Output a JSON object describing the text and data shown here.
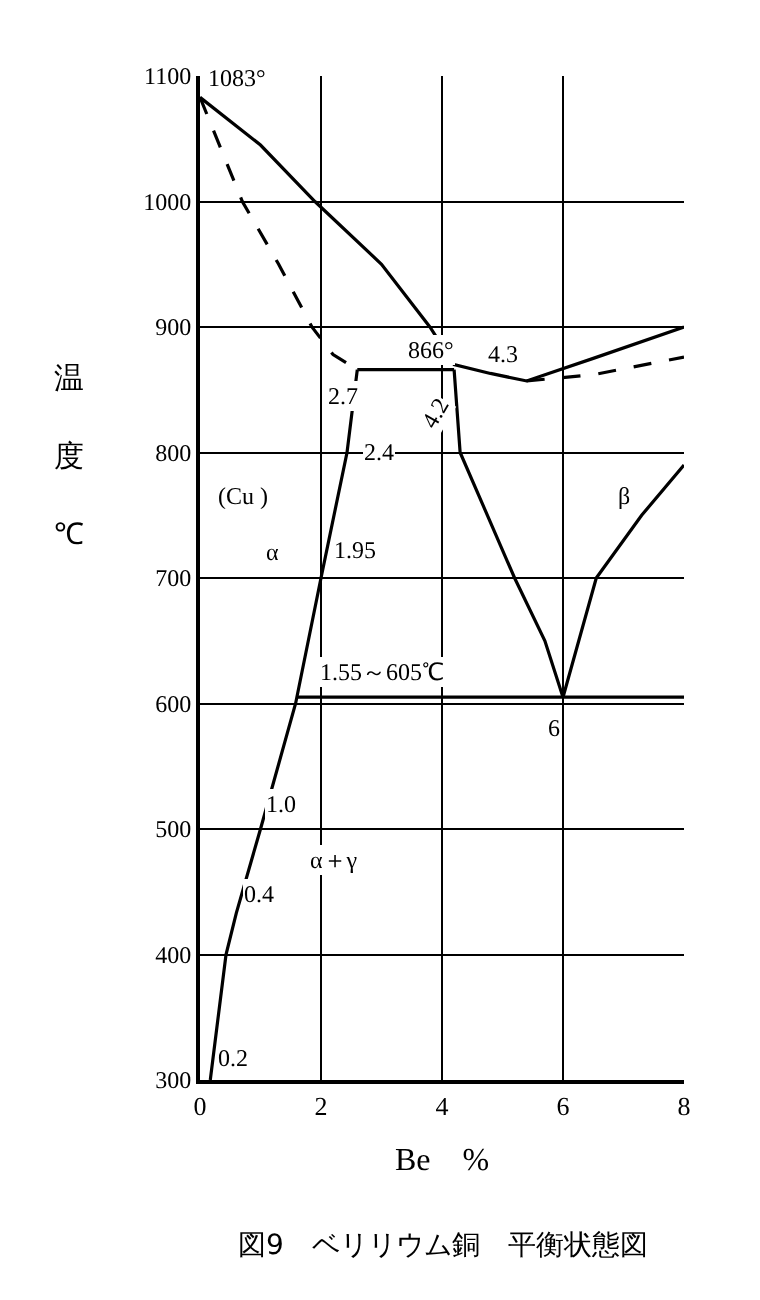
{
  "chart_data": {
    "type": "line",
    "title": "図9　ベリリウム銅　平衡状態図",
    "xlabel": "Be　%",
    "ylabel": "温度℃",
    "xlim": [
      0,
      8
    ],
    "xticks": [
      0,
      2,
      4,
      6,
      8
    ],
    "ylim": [
      300,
      1100
    ],
    "yticks": [
      300,
      400,
      500,
      600,
      700,
      800,
      900,
      1000,
      1100
    ],
    "grid": true,
    "marker": "none",
    "series": [
      {
        "color": "#000000",
        "line_style": "solid",
        "x": [
          0,
          1.0,
          1.9,
          3.0,
          3.8,
          4.2,
          4.8,
          5.4,
          6.5,
          8
        ],
        "values": [
          1083,
          1045,
          1000,
          950,
          900,
          870,
          863,
          857,
          875,
          900
        ]
      },
      {
        "color": "#000000",
        "line_style": "dashed",
        "x": [
          0,
          0.7,
          1.3,
          1.85,
          2.2,
          2.6
        ],
        "values": [
          1083,
          1000,
          950,
          900,
          878,
          866
        ]
      },
      {
        "color": "#000000",
        "line_style": "dashed",
        "x": [
          5.4,
          6.5,
          8
        ],
        "values": [
          857,
          862,
          876
        ]
      },
      {
        "color": "#000000",
        "line_style": "solid",
        "x": [
          2.6,
          4.2
        ],
        "values": [
          866,
          866
        ]
      },
      {
        "color": "#000000",
        "line_style": "solid",
        "x": [
          2.6,
          2.43,
          2.0,
          1.58,
          1.0,
          0.6,
          0.43,
          0.17
        ],
        "values": [
          866,
          800,
          700,
          600,
          500,
          433,
          400,
          300
        ]
      },
      {
        "color": "#000000",
        "line_style": "solid",
        "x": [
          1.6,
          8
        ],
        "values": [
          605,
          605
        ]
      },
      {
        "color": "#000000",
        "line_style": "solid",
        "x": [
          4.2,
          4.3,
          5.2,
          5.7,
          6.0
        ],
        "values": [
          866,
          800,
          700,
          650,
          605
        ]
      },
      {
        "color": "#000000",
        "line_style": "solid",
        "x": [
          6.0,
          6.55,
          7.3,
          8
        ],
        "values": [
          605,
          700,
          750,
          790
        ]
      }
    ],
    "annotations": [
      {
        "text": "1083°",
        "x": 0,
        "y": 1083
      },
      {
        "text": "866°",
        "x": 3.3,
        "y": 866
      },
      "2.7",
      "4.3",
      "4.2",
      "2.4",
      "(Cu )",
      "α",
      "1.95",
      "β",
      "1.55～605℃",
      "6",
      "1.0",
      "α＋γ",
      {
        "text": "0.4",
        "x": 0.6,
        "y": 433
      },
      "0.2"
    ]
  }
}
